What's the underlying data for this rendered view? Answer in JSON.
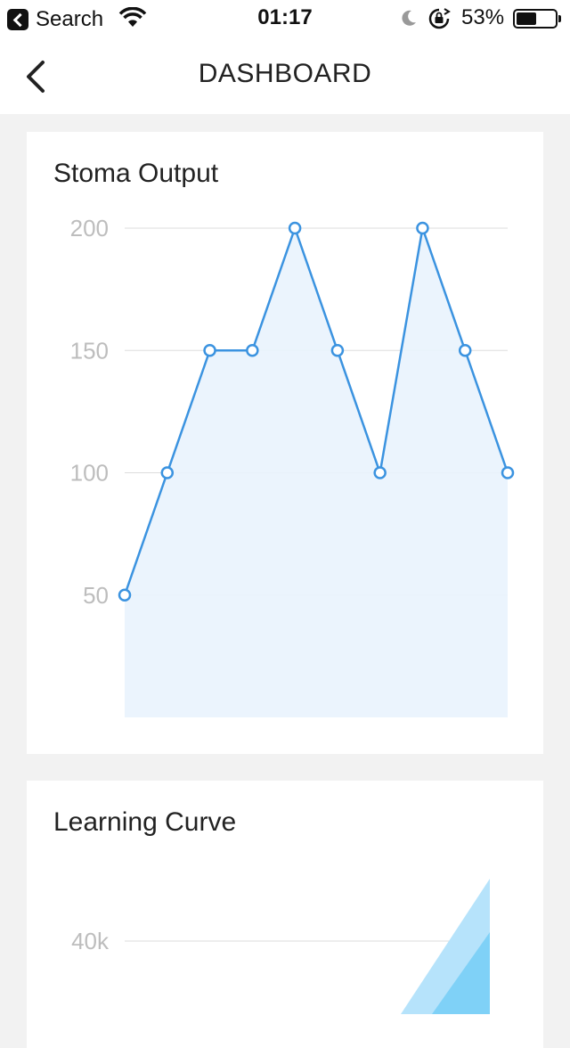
{
  "status_bar": {
    "back_app_label": "Search",
    "time": "01:17",
    "battery_percent": "53%",
    "battery_level": 0.53,
    "icons": [
      "back-arrow-icon",
      "wifi-icon",
      "moon-icon",
      "orientation-lock-icon",
      "battery-icon"
    ]
  },
  "nav": {
    "title": "DASHBOARD",
    "back_icon": "chevron-left-icon"
  },
  "cards": {
    "stoma": {
      "title": "Stoma Output"
    },
    "learning": {
      "title": "Learning Curve"
    }
  },
  "colors": {
    "line": "#3b93e0",
    "area": "#e9f3fd",
    "area_light": "#b6e3fb",
    "area_dark": "#7fd1f7",
    "grid": "#dddddd",
    "ticks": "#bdbdbd"
  },
  "chart_data": [
    {
      "type": "area",
      "title": "Stoma Output",
      "x": [
        1,
        2,
        3,
        4,
        5,
        6,
        7,
        8,
        9,
        10
      ],
      "series": [
        {
          "values": [
            50,
            100,
            150,
            150,
            200,
            150,
            100,
            200,
            150,
            100
          ]
        }
      ],
      "yticks": [
        50,
        100,
        150,
        200
      ],
      "ytick_labels": [
        "50",
        "100",
        "150",
        "200"
      ],
      "ylim": [
        0,
        200
      ],
      "grid": true,
      "markers": true
    },
    {
      "type": "area",
      "title": "Learning Curve",
      "yticks": [
        40000
      ],
      "ytick_labels": [
        "40k"
      ],
      "grid": true
    }
  ]
}
